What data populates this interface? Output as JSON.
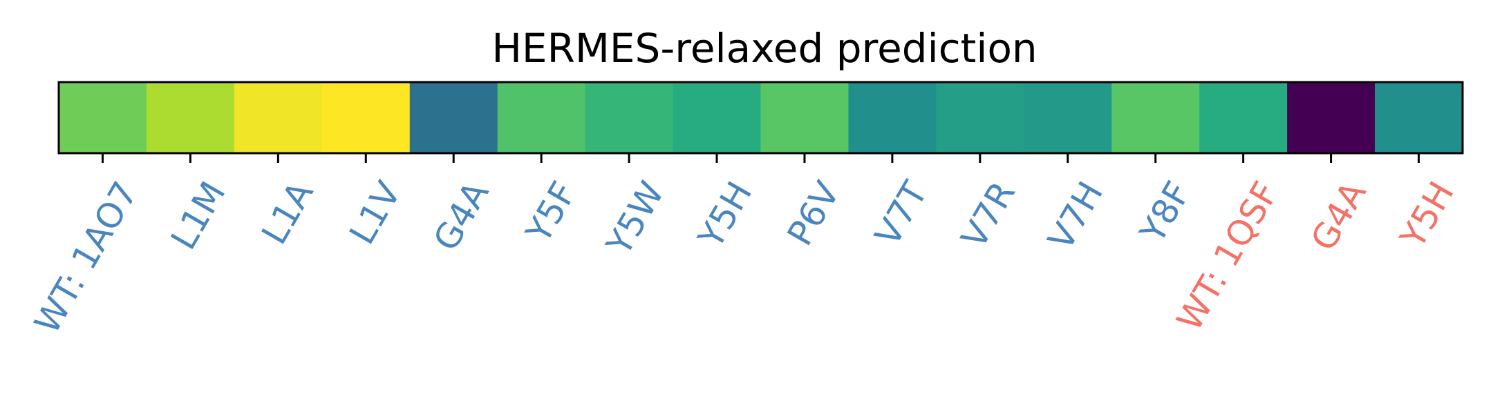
{
  "chart_data": {
    "type": "heatmap",
    "title": "HERMES-relaxed prediction",
    "xlabel": "",
    "ylabel": "",
    "colormap": "viridis",
    "categories": [
      "WT: 1AO7",
      "L1M",
      "L1A",
      "L1V",
      "G4A",
      "Y5F",
      "Y5W",
      "Y5H",
      "P6V",
      "V7T",
      "V7R",
      "V7H",
      "Y8F",
      "WT: 1QSF",
      "G4A",
      "Y5H"
    ],
    "values": [
      0.78,
      0.88,
      0.98,
      1.0,
      0.38,
      0.72,
      0.66,
      0.62,
      0.74,
      0.5,
      0.56,
      0.54,
      0.74,
      0.62,
      0.0,
      0.5
    ],
    "groups": [
      {
        "name": "1AO7",
        "color": "#4a86be",
        "start": 0,
        "end": 12
      },
      {
        "name": "1QSF",
        "color": "#f57166",
        "start": 13,
        "end": 15
      }
    ]
  }
}
